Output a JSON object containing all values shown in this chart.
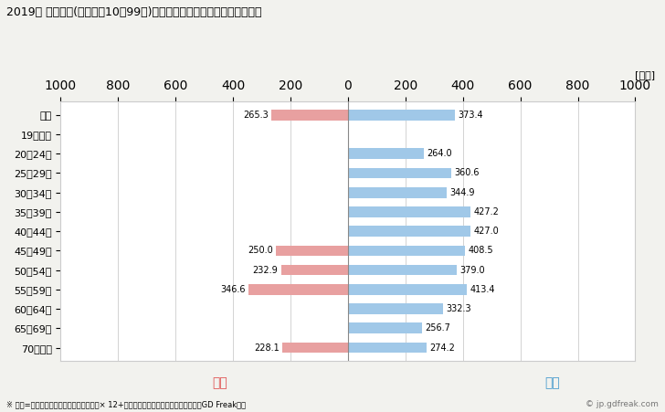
{
  "title": "2019年 民間企業(従業者数10〜99人)フルタイム労働者の男女別平均年収",
  "ylabel_unit": "[万円]",
  "categories": [
    "全体",
    "19歳以下",
    "20〜24歳",
    "25〜29歳",
    "30〜34歳",
    "35〜39歳",
    "40〜44歳",
    "45〜49歳",
    "50〜54歳",
    "55〜59歳",
    "60〜64歳",
    "65〜69歳",
    "70歳以上"
  ],
  "female_values": [
    265.3,
    0,
    0,
    0,
    0,
    0,
    0,
    250.0,
    232.9,
    346.6,
    0,
    0,
    228.1
  ],
  "male_values": [
    373.4,
    0,
    264.0,
    360.6,
    344.9,
    427.2,
    427.0,
    408.5,
    379.0,
    413.4,
    332.3,
    256.7,
    274.2
  ],
  "female_color": "#E8A0A0",
  "male_color": "#A0C8E8",
  "female_label": "女性",
  "male_label": "男性",
  "female_label_color": "#E05050",
  "male_label_color": "#4499CC",
  "xlim": [
    -1000,
    1000
  ],
  "xticks": [
    -1000,
    -800,
    -600,
    -400,
    -200,
    0,
    200,
    400,
    600,
    800,
    1000
  ],
  "xtick_labels": [
    "1000",
    "800",
    "600",
    "400",
    "200",
    "0",
    "200",
    "400",
    "600",
    "800",
    "1000"
  ],
  "background_color": "#F2F2EE",
  "plot_bg_color": "#FFFFFF",
  "footnote": "※ 年収=「きまって支給する現金給与額」× 12+「年間賞与その他特別給与額」としてGD Freak推計",
  "copyright": "© jp.gdfreak.com",
  "bar_height": 0.55
}
